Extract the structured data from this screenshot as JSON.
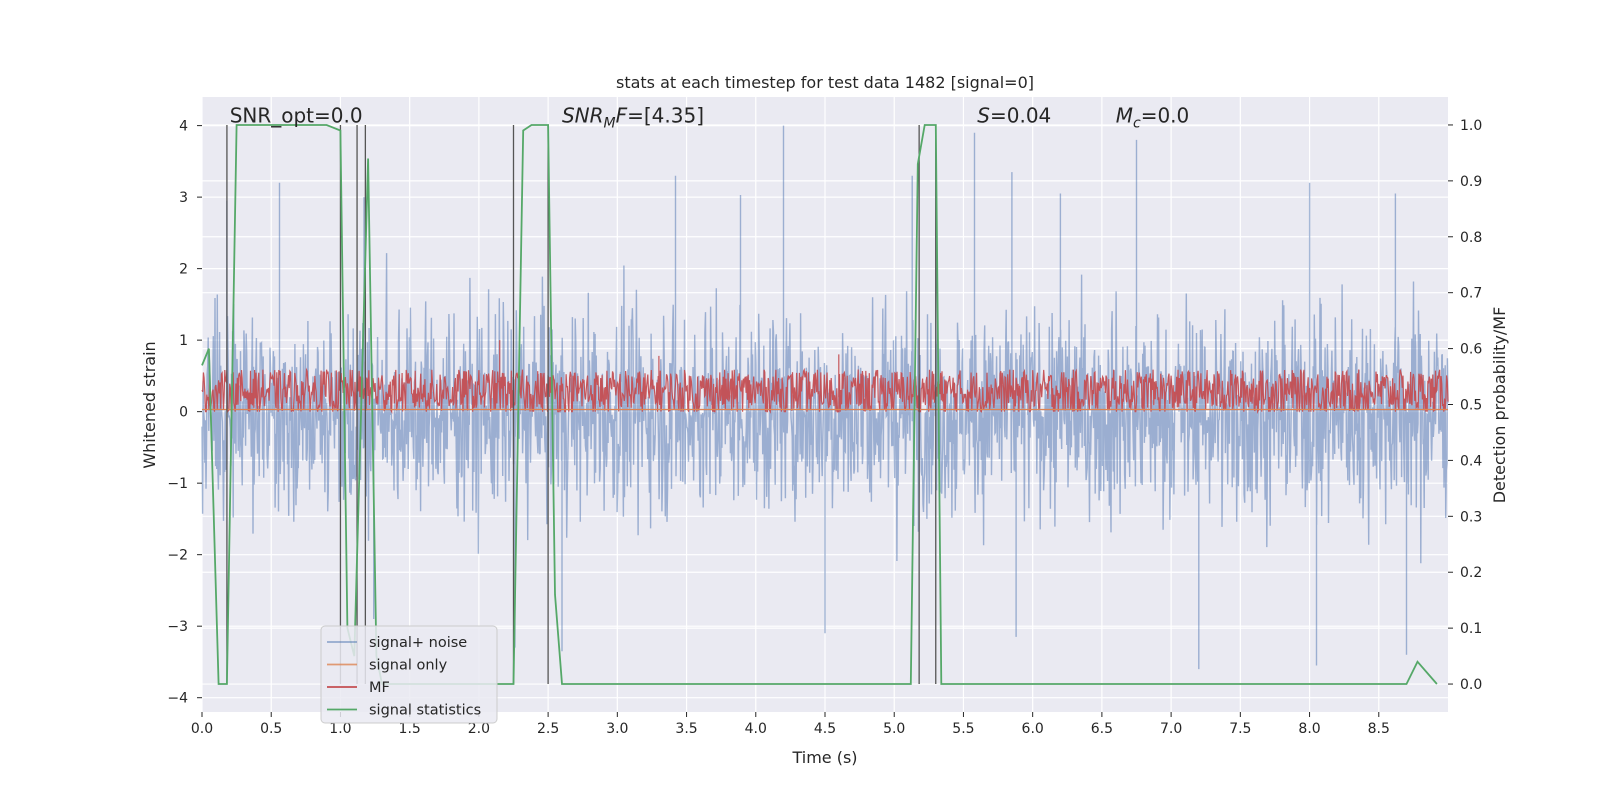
{
  "chart_data": {
    "type": "line",
    "title": "stats at each timestep for test data 1482 [signal=0]",
    "xlabel": "Time (s)",
    "ylabel": "Whitened strain",
    "ylabel_right": "Detection probability/MF",
    "xlim": [
      0.0,
      9.0
    ],
    "ylim": [
      -4.2,
      4.4
    ],
    "ylim_right": [
      -0.05,
      1.05
    ],
    "x_ticks": [
      0.0,
      0.5,
      1.0,
      1.5,
      2.0,
      2.5,
      3.0,
      3.5,
      4.0,
      4.5,
      5.0,
      5.5,
      6.0,
      6.5,
      7.0,
      7.5,
      8.0,
      8.5
    ],
    "x_tick_labels": [
      "0.0",
      "0.5",
      "1.0",
      "1.5",
      "2.0",
      "2.5",
      "3.0",
      "3.5",
      "4.0",
      "4.5",
      "5.0",
      "5.5",
      "6.0",
      "6.5",
      "7.0",
      "7.5",
      "8.0",
      "8.5"
    ],
    "y_ticks": [
      -4,
      -3,
      -2,
      -1,
      0,
      1,
      2,
      3,
      4
    ],
    "y_tick_labels": [
      "−4",
      "−3",
      "−2",
      "−1",
      "0",
      "1",
      "2",
      "3",
      "4"
    ],
    "y_ticks_right": [
      0.0,
      0.1,
      0.2,
      0.3,
      0.4,
      0.5,
      0.6,
      0.7,
      0.8,
      0.9,
      1.0
    ],
    "y_tick_labels_right": [
      "0.0",
      "0.1",
      "0.2",
      "0.3",
      "0.4",
      "0.5",
      "0.6",
      "0.7",
      "0.8",
      "0.9",
      "1.0"
    ],
    "grid": true,
    "legend_position": "lower-left",
    "annotations": [
      {
        "plain": "SNR_opt=0.0",
        "x": 0.2,
        "y": 4.1
      },
      {
        "var": "SNR",
        "sub": "M",
        "var2": "F",
        "rest": "=[4.35]",
        "x": 2.6,
        "y": 4.1
      },
      {
        "var": "S",
        "rest": "=0.04",
        "x": 5.6,
        "y": 4.1
      },
      {
        "var": "M",
        "sub": "c",
        "rest": "=0.0",
        "x": 6.6,
        "y": 4.1
      }
    ],
    "series": [
      {
        "name": "signal+ noise",
        "color": "#4c72b0",
        "kind": "noise",
        "amplitude": 1.0,
        "peaks": [
          {
            "x": 0.18,
            "y": 2.95
          },
          {
            "x": 0.56,
            "y": 3.2
          },
          {
            "x": 1.17,
            "y": 3.0
          },
          {
            "x": 3.42,
            "y": 3.3
          },
          {
            "x": 3.89,
            "y": 3.03
          },
          {
            "x": 4.2,
            "y": 4.0
          },
          {
            "x": 5.13,
            "y": 3.3
          },
          {
            "x": 5.3,
            "y": 3.85
          },
          {
            "x": 5.58,
            "y": 3.9
          },
          {
            "x": 5.85,
            "y": 3.35
          },
          {
            "x": 6.2,
            "y": 3.05
          },
          {
            "x": 6.75,
            "y": 3.8
          },
          {
            "x": 8.0,
            "y": 3.2
          },
          {
            "x": 8.62,
            "y": 3.05
          },
          {
            "x": 2.26,
            "y": -3.3
          },
          {
            "x": 2.6,
            "y": -3.35
          },
          {
            "x": 4.5,
            "y": -3.1
          },
          {
            "x": 5.88,
            "y": -3.15
          },
          {
            "x": 7.2,
            "y": -3.6
          },
          {
            "x": 8.05,
            "y": -3.55
          },
          {
            "x": 8.7,
            "y": -3.4
          },
          {
            "x": 1.24,
            "y": -2.9
          }
        ]
      },
      {
        "name": "signal only",
        "color": "#dd8452",
        "x": [
          0.0,
          9.0
        ],
        "y": [
          0.03,
          0.03
        ]
      },
      {
        "name": "MF",
        "color": "#c44e52",
        "kind": "mf",
        "baseline": 0.0,
        "peaks": [
          {
            "x": 2.15,
            "y": 1.0
          },
          {
            "x": 1.18,
            "y": 0.7
          },
          {
            "x": 3.3,
            "y": 0.78
          },
          {
            "x": 4.6,
            "y": 0.8
          }
        ]
      },
      {
        "name": "signal statistics",
        "color": "#55a868",
        "axis": "right",
        "x": [
          0.0,
          0.05,
          0.12,
          0.18,
          0.25,
          0.3,
          0.5,
          0.7,
          0.9,
          1.0,
          1.05,
          1.1,
          1.2,
          1.26,
          1.3,
          1.5,
          1.8,
          2.0,
          2.25,
          2.32,
          2.38,
          2.5,
          2.55,
          2.6,
          2.65,
          3.0,
          4.0,
          5.0,
          5.12,
          5.17,
          5.22,
          5.3,
          5.34,
          5.4,
          6.0,
          7.0,
          8.0,
          8.7,
          8.78,
          8.85,
          8.92
        ],
        "y": [
          0.57,
          0.6,
          0.0,
          0.0,
          1.0,
          1.0,
          1.0,
          1.0,
          1.0,
          0.99,
          0.1,
          0.05,
          0.94,
          0.05,
          0.0,
          0.0,
          0.0,
          0.0,
          0.0,
          0.99,
          1.0,
          1.0,
          0.16,
          0.0,
          0.0,
          0.0,
          0.0,
          0.0,
          0.0,
          0.93,
          1.0,
          1.0,
          0.0,
          0.0,
          0.0,
          0.0,
          0.0,
          0.0,
          0.04,
          0.02,
          0.0
        ]
      }
    ],
    "vertical_markers": [
      {
        "x": 0.18,
        "y": [
          0.0,
          1.0
        ]
      },
      {
        "x": 1.0,
        "y": [
          0.0,
          1.0
        ]
      },
      {
        "x": 1.12,
        "y": [
          0.0,
          1.0
        ]
      },
      {
        "x": 1.18,
        "y": [
          0.0,
          1.0
        ]
      },
      {
        "x": 2.25,
        "y": [
          0.0,
          1.0
        ]
      },
      {
        "x": 2.5,
        "y": [
          0.0,
          1.0
        ]
      },
      {
        "x": 5.18,
        "y": [
          0.0,
          1.0
        ]
      },
      {
        "x": 5.3,
        "y": [
          0.0,
          1.0
        ]
      }
    ]
  }
}
